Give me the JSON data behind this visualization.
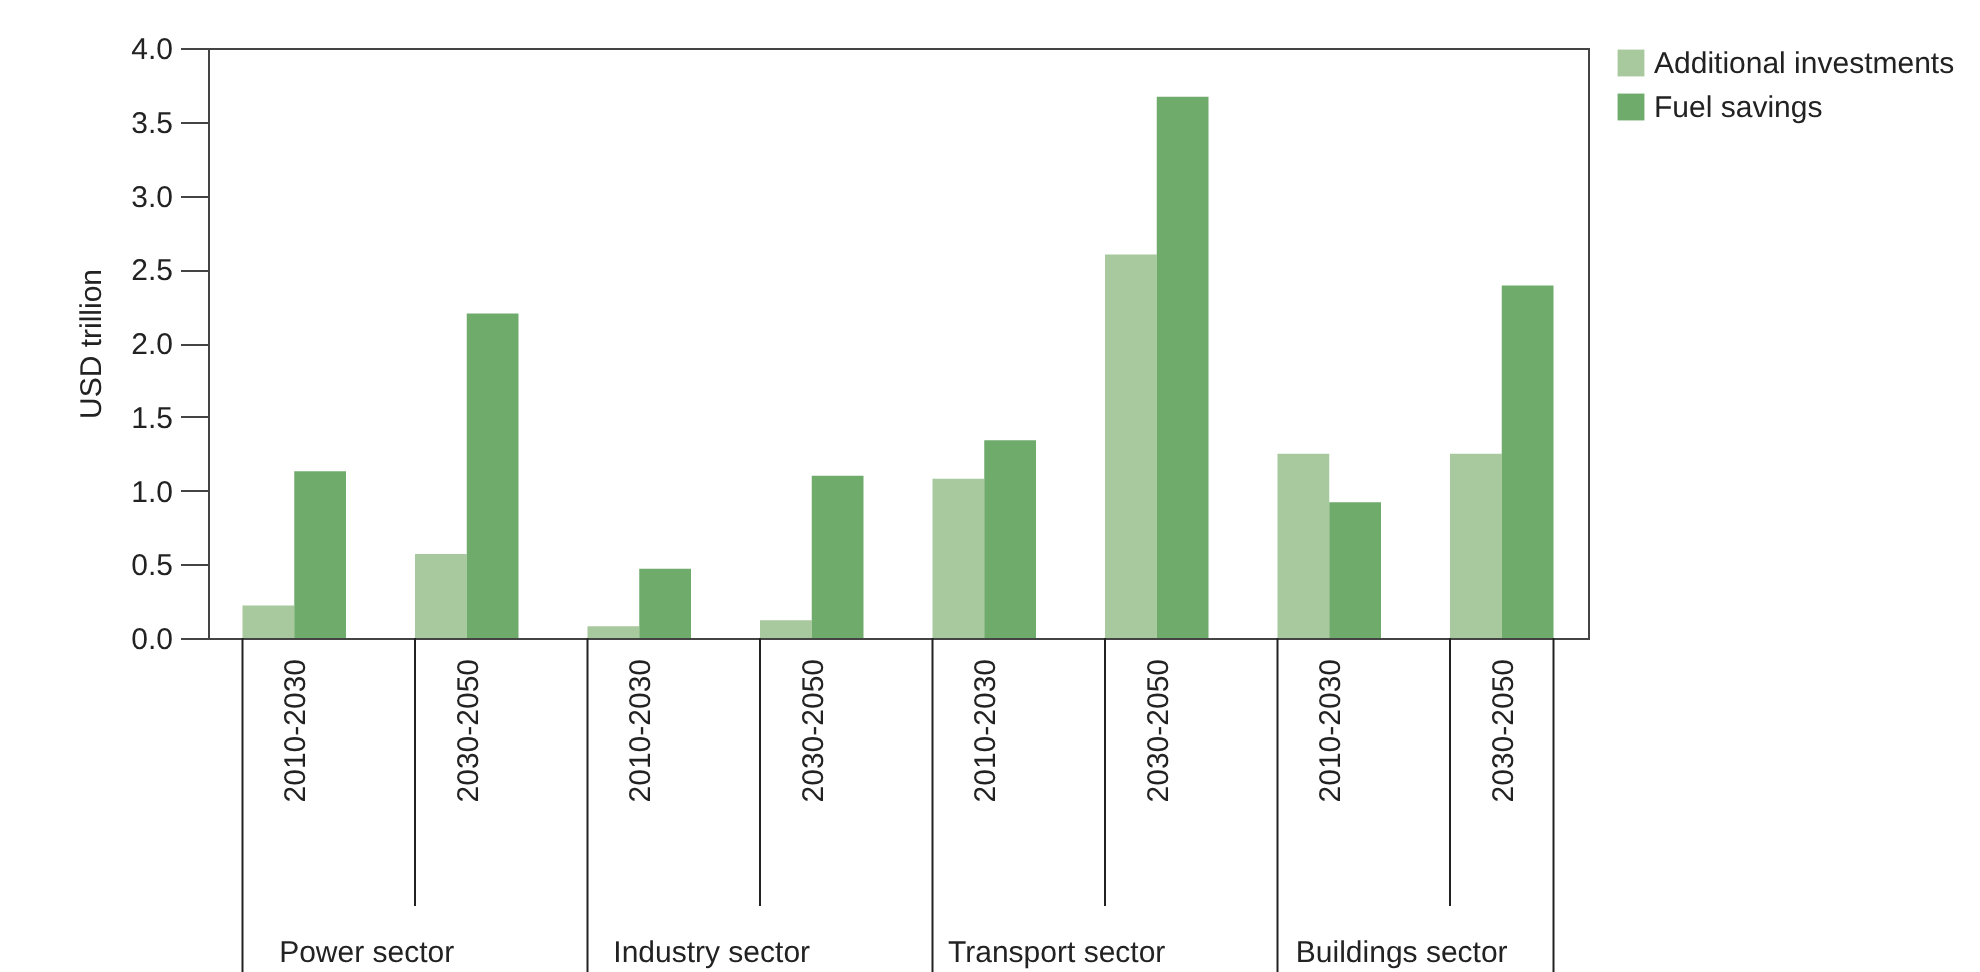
{
  "chart_data": {
    "type": "bar",
    "ylabel": "USD trillion",
    "categories": [
      "2010-2030",
      "2030-2050",
      "2010-2030",
      "2030-2050",
      "2010-2030",
      "2030-2050",
      "2010-2030",
      "2030-2050"
    ],
    "annotations": [
      "Power sector",
      "Industry sector",
      "Transport sector",
      "Buildings sector"
    ],
    "series": [
      {
        "name": "Additional investments",
        "color": "#a8c99d",
        "values": [
          0.22,
          0.57,
          0.08,
          0.12,
          1.08,
          2.6,
          1.25,
          1.25
        ]
      },
      {
        "name": "Fuel savings",
        "color": "#6fab6b",
        "values": [
          1.13,
          2.2,
          0.47,
          1.1,
          1.34,
          3.67,
          0.92,
          2.39
        ]
      }
    ],
    "ylim": [
      0,
      4.0
    ],
    "yticks": [
      {
        "value": 0,
        "label": "0.0"
      },
      0.5,
      {
        "value": 1,
        "label": "1.0"
      },
      1.5,
      {
        "value": 2,
        "label": "2.0"
      },
      2.5,
      {
        "value": 3,
        "label": "3.0"
      },
      3.5,
      {
        "value": 4,
        "label": "4.0"
      }
    ],
    "grid": false,
    "legend": "top right"
  }
}
